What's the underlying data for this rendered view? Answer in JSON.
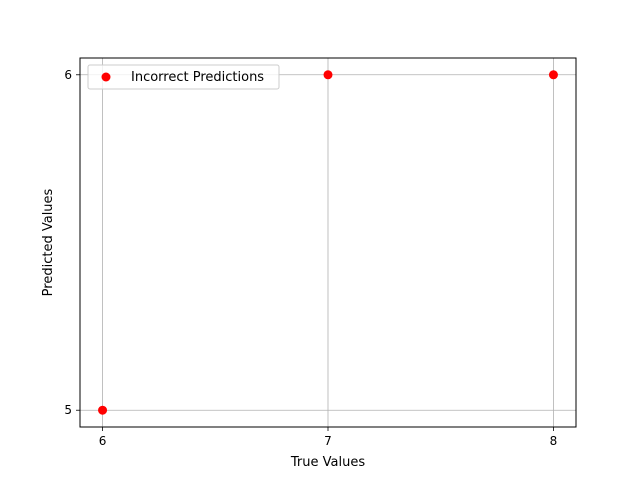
{
  "chart_data": {
    "type": "scatter",
    "title": "",
    "xlabel": "True Values",
    "ylabel": "Predicted Values",
    "xlim": [
      5.9,
      8.1
    ],
    "ylim": [
      4.95,
      6.05
    ],
    "xticks": [
      6,
      7,
      8
    ],
    "yticks": [
      5,
      6
    ],
    "xtick_labels": [
      "6",
      "7",
      "8"
    ],
    "ytick_labels": [
      "5",
      "6"
    ],
    "grid": true,
    "legend_position": "upper-left",
    "series": [
      {
        "name": "Incorrect Predictions",
        "color": "#ff0000",
        "x": [
          6,
          7,
          8
        ],
        "y": [
          5,
          6,
          6
        ]
      }
    ]
  }
}
